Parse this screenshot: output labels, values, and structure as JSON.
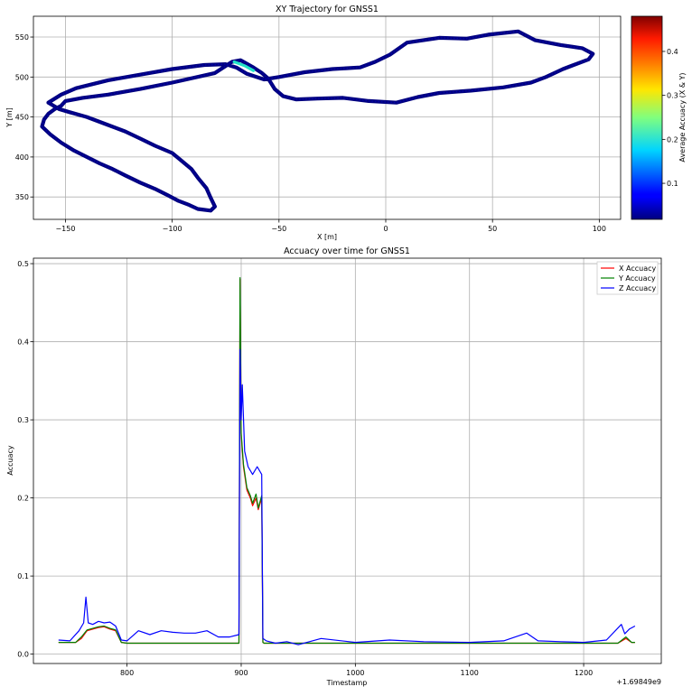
{
  "chart_data": [
    {
      "type": "scatter",
      "title": "XY Trajectory for GNSS1",
      "xlabel": "X [m]",
      "ylabel": "Y [m]",
      "xlim": [
        -165,
        110
      ],
      "ylim": [
        322,
        576
      ],
      "xticks": [
        -150,
        -100,
        -50,
        0,
        50,
        100
      ],
      "yticks": [
        350,
        400,
        450,
        500,
        550
      ],
      "grid": true,
      "colormap": "jet",
      "colorbar": {
        "label": "Average Accuacy (X & Y)",
        "range": [
          0.018,
          0.48
        ],
        "ticks": [
          0.1,
          0.2,
          0.3,
          0.4
        ]
      },
      "path": [
        [
          -82,
          333
        ],
        [
          -88,
          335
        ],
        [
          -92,
          340
        ],
        [
          -97,
          345
        ],
        [
          -102,
          352
        ],
        [
          -108,
          360
        ],
        [
          -115,
          368
        ],
        [
          -122,
          377
        ],
        [
          -128,
          385
        ],
        [
          -134,
          392
        ],
        [
          -140,
          400
        ],
        [
          -146,
          408
        ],
        [
          -152,
          418
        ],
        [
          -157,
          428
        ],
        [
          -161,
          438
        ],
        [
          -160,
          447
        ],
        [
          -158,
          454
        ],
        [
          -155,
          460
        ],
        [
          -152,
          464
        ],
        [
          -150,
          470
        ],
        [
          -142,
          474
        ],
        [
          -130,
          478
        ],
        [
          -115,
          485
        ],
        [
          -100,
          493
        ],
        [
          -80,
          505
        ],
        [
          -72,
          519
        ],
        [
          -68,
          521
        ],
        [
          -62,
          512
        ],
        [
          -58,
          505
        ],
        [
          -55,
          498
        ],
        [
          -52,
          485
        ],
        [
          -48,
          476
        ],
        [
          -42,
          472
        ],
        [
          -32,
          473
        ],
        [
          -20,
          474
        ],
        [
          -8,
          470
        ],
        [
          5,
          468
        ],
        [
          15,
          475
        ],
        [
          25,
          480
        ],
        [
          40,
          483
        ],
        [
          55,
          487
        ],
        [
          68,
          493
        ],
        [
          75,
          500
        ],
        [
          83,
          510
        ],
        [
          88,
          515
        ],
        [
          95,
          522
        ],
        [
          97,
          529
        ],
        [
          92,
          536
        ],
        [
          82,
          540
        ],
        [
          70,
          546
        ],
        [
          62,
          557
        ],
        [
          48,
          553
        ],
        [
          38,
          548
        ],
        [
          25,
          549
        ],
        [
          10,
          543
        ],
        [
          2,
          528
        ],
        [
          -5,
          519
        ],
        [
          -12,
          512
        ],
        [
          -25,
          510
        ],
        [
          -38,
          506
        ],
        [
          -50,
          500
        ],
        [
          -57,
          497
        ],
        [
          -65,
          504
        ],
        [
          -70,
          512
        ],
        [
          -75,
          516
        ],
        [
          -85,
          515
        ],
        [
          -100,
          510
        ],
        [
          -115,
          503
        ],
        [
          -130,
          496
        ],
        [
          -145,
          486
        ],
        [
          -152,
          478
        ],
        [
          -158,
          468
        ],
        [
          -153,
          460
        ],
        [
          -148,
          456
        ],
        [
          -140,
          450
        ],
        [
          -130,
          440
        ],
        [
          -122,
          432
        ],
        [
          -115,
          423
        ],
        [
          -108,
          414
        ],
        [
          -100,
          405
        ],
        [
          -96,
          396
        ],
        [
          -91,
          385
        ],
        [
          -88,
          374
        ],
        [
          -84,
          361
        ],
        [
          -82,
          349
        ],
        [
          -80,
          338
        ],
        [
          -82,
          333
        ]
      ],
      "highlight_segment": {
        "points": [
          [
            -71,
            519
          ],
          [
            -66,
            514
          ],
          [
            -62,
            508
          ]
        ],
        "color": "#22e3c8"
      }
    },
    {
      "type": "line",
      "title": "Accuacy over time for GNSS1",
      "xlabel": "Timestamp",
      "ylabel": "Accuacy",
      "xlim": [
        718,
        1268
      ],
      "ylim": [
        -0.012,
        0.507
      ],
      "xticks": [
        800,
        900,
        1000,
        1100,
        1200
      ],
      "yticks": [
        0.0,
        0.1,
        0.2,
        0.3,
        0.4,
        0.5
      ],
      "offset_text": "+1.69849e9",
      "grid": true,
      "legend": "top-right",
      "series": [
        {
          "name": "X Accuacy",
          "color": "#ff0000",
          "x": [
            740,
            755,
            760,
            765,
            770,
            775,
            780,
            785,
            790,
            795,
            800,
            830,
            860,
            890,
            898,
            899,
            900,
            902,
            905,
            908,
            910,
            913,
            915,
            918,
            919,
            920,
            950,
            1000,
            1050,
            1100,
            1150,
            1200,
            1230,
            1237,
            1242,
            1245
          ],
          "values": [
            0.015,
            0.015,
            0.02,
            0.03,
            0.032,
            0.034,
            0.035,
            0.032,
            0.03,
            0.015,
            0.014,
            0.014,
            0.014,
            0.014,
            0.014,
            0.48,
            0.28,
            0.24,
            0.21,
            0.2,
            0.19,
            0.2,
            0.185,
            0.2,
            0.015,
            0.014,
            0.014,
            0.014,
            0.014,
            0.014,
            0.014,
            0.014,
            0.014,
            0.02,
            0.015,
            0.015
          ]
        },
        {
          "name": "Y Accuacy",
          "color": "#008000",
          "x": [
            740,
            755,
            760,
            765,
            770,
            775,
            780,
            785,
            790,
            795,
            800,
            830,
            860,
            890,
            898,
            899,
            900,
            902,
            905,
            908,
            910,
            913,
            915,
            918,
            919,
            920,
            950,
            1000,
            1050,
            1100,
            1150,
            1200,
            1230,
            1237,
            1242,
            1245
          ],
          "values": [
            0.015,
            0.015,
            0.022,
            0.031,
            0.033,
            0.035,
            0.036,
            0.033,
            0.031,
            0.015,
            0.014,
            0.014,
            0.014,
            0.014,
            0.014,
            0.482,
            0.283,
            0.243,
            0.213,
            0.203,
            0.193,
            0.205,
            0.187,
            0.203,
            0.015,
            0.014,
            0.014,
            0.014,
            0.014,
            0.014,
            0.014,
            0.014,
            0.014,
            0.022,
            0.015,
            0.015
          ]
        },
        {
          "name": "Z Accuacy",
          "color": "#0000ff",
          "x": [
            740,
            750,
            758,
            762,
            764,
            766,
            770,
            775,
            780,
            785,
            790,
            795,
            800,
            810,
            820,
            830,
            840,
            850,
            860,
            870,
            880,
            890,
            898,
            899,
            900,
            901,
            903,
            906,
            910,
            914,
            918,
            919,
            922,
            930,
            940,
            950,
            970,
            1000,
            1030,
            1060,
            1100,
            1130,
            1150,
            1160,
            1180,
            1200,
            1220,
            1233,
            1236,
            1240,
            1245
          ],
          "values": [
            0.018,
            0.017,
            0.03,
            0.04,
            0.073,
            0.04,
            0.038,
            0.042,
            0.04,
            0.041,
            0.036,
            0.018,
            0.017,
            0.03,
            0.025,
            0.03,
            0.028,
            0.027,
            0.027,
            0.03,
            0.022,
            0.022,
            0.025,
            0.39,
            0.3,
            0.345,
            0.26,
            0.24,
            0.23,
            0.24,
            0.23,
            0.02,
            0.017,
            0.014,
            0.016,
            0.012,
            0.02,
            0.015,
            0.018,
            0.016,
            0.015,
            0.017,
            0.027,
            0.017,
            0.016,
            0.015,
            0.018,
            0.038,
            0.026,
            0.032,
            0.036
          ]
        }
      ]
    }
  ]
}
